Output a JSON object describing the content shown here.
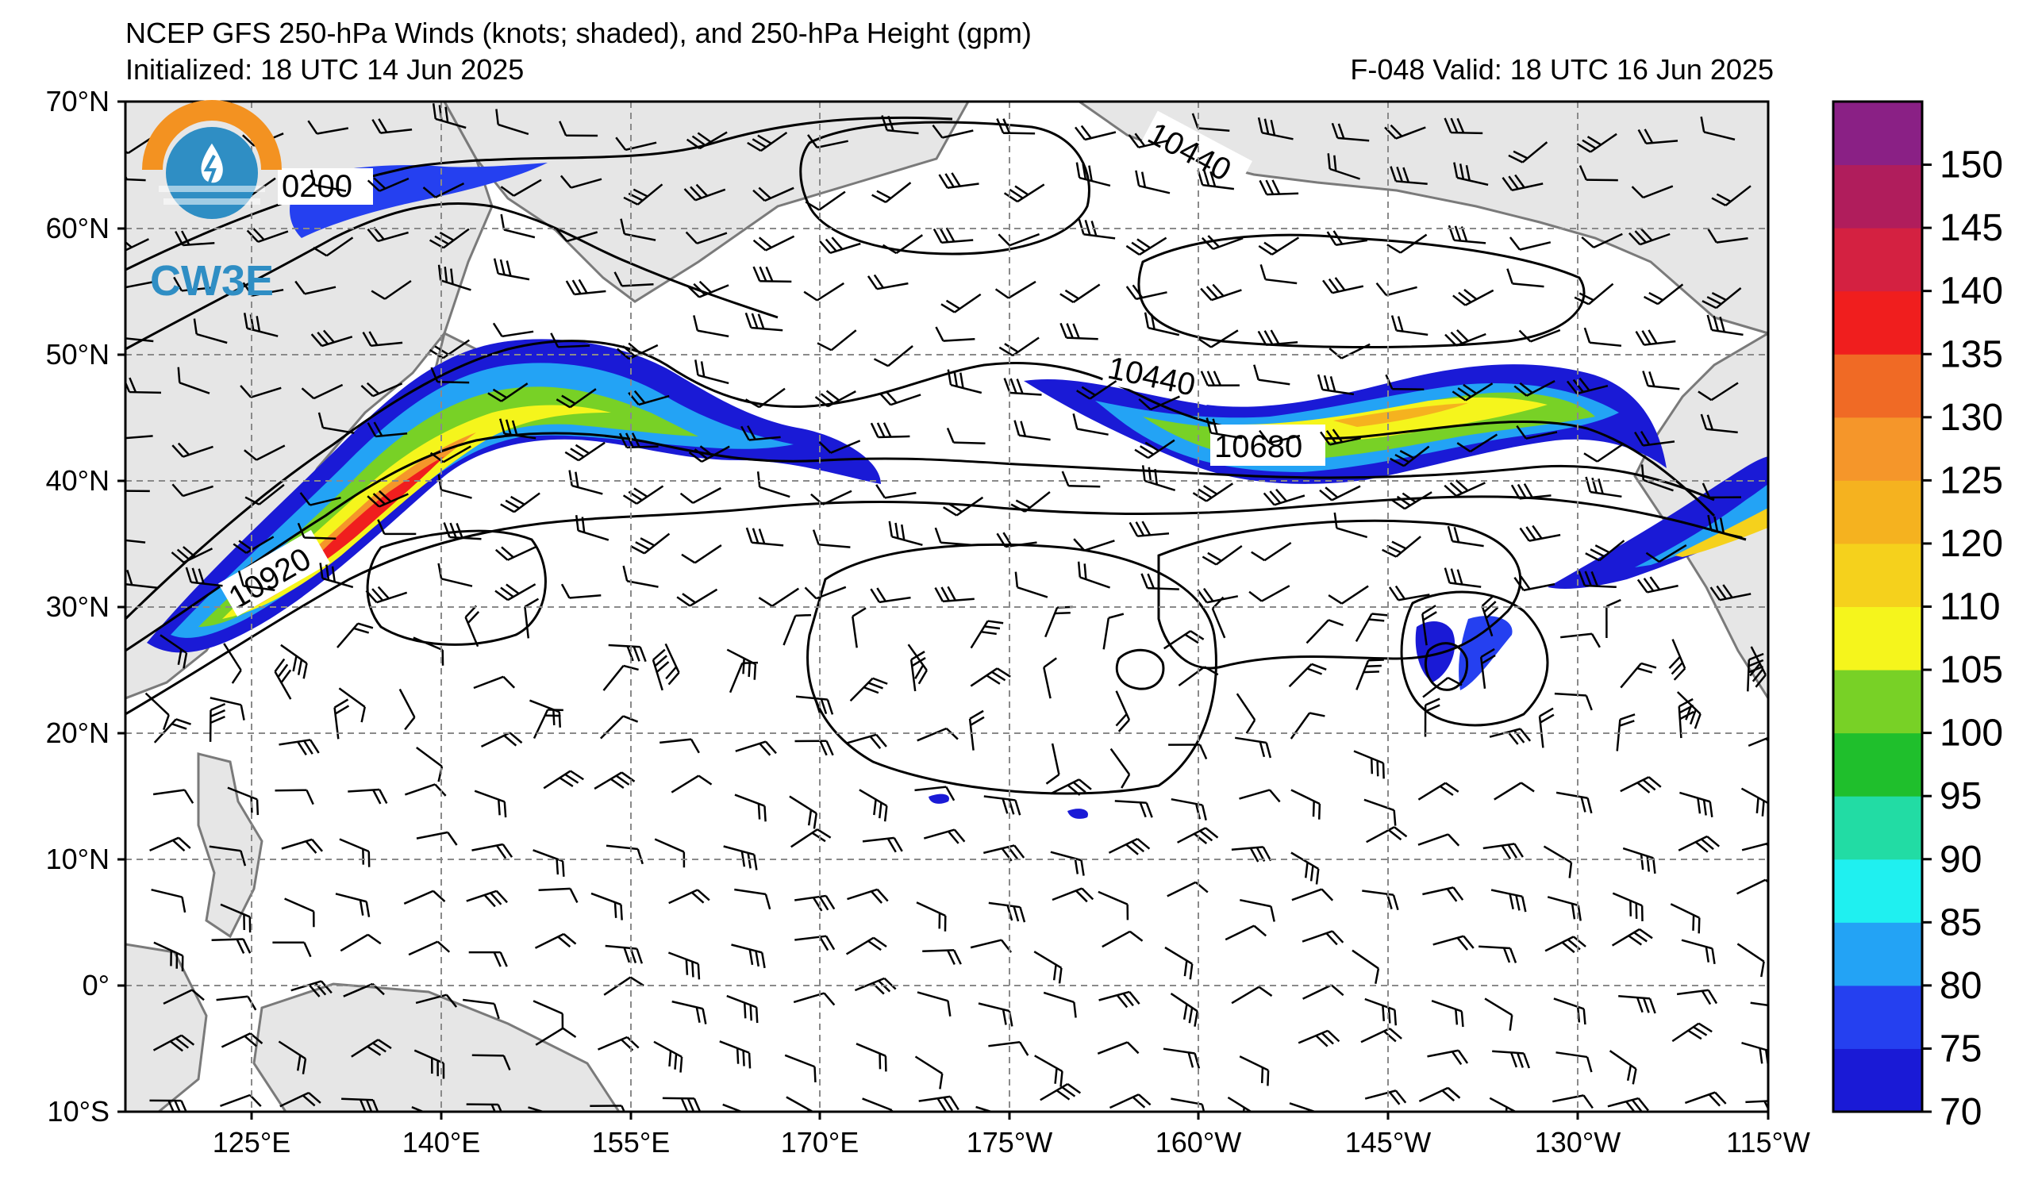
{
  "header": {
    "title": "NCEP GFS 250-hPa Winds (knots; shaded), and 250-hPa Height (gpm)",
    "initialized": "Initialized: 18 UTC 14 Jun 2025",
    "valid": "F-048  Valid: 18 UTC 16 Jun 2025"
  },
  "logo": {
    "text": "CW3E",
    "colors": {
      "ring": "#f39221",
      "body": "#2f8ec4"
    }
  },
  "axes": {
    "lat_labels": [
      "70°N",
      "60°N",
      "50°N",
      "40°N",
      "30°N",
      "20°N",
      "10°N",
      "0°",
      "10°S"
    ],
    "lon_labels": [
      "125°E",
      "140°E",
      "155°E",
      "170°E",
      "175°W",
      "160°W",
      "145°W",
      "130°W",
      "115°W"
    ]
  },
  "contours": {
    "labels": [
      {
        "id": "c1",
        "text": "0200"
      },
      {
        "id": "c2",
        "text": "10440"
      },
      {
        "id": "c3",
        "text": "10440"
      },
      {
        "id": "c4",
        "text": "10680"
      },
      {
        "id": "c5",
        "text": "10920"
      }
    ]
  },
  "colorbar": {
    "levels": [
      70,
      75,
      80,
      85,
      90,
      95,
      100,
      105,
      110,
      120,
      125,
      130,
      135,
      140,
      145,
      150
    ],
    "labels": [
      "70",
      "75",
      "80",
      "85",
      "90",
      "95",
      "100",
      "105",
      "110",
      "120",
      "125",
      "130",
      "135",
      "140",
      "145",
      "150"
    ],
    "colors": [
      "#1a1ad6",
      "#2540f0",
      "#23a3f5",
      "#1ff0f0",
      "#22dca4",
      "#1fbf2c",
      "#78d126",
      "#f5f51c",
      "#f5d11c",
      "#f5b21f",
      "#f5962a",
      "#f06a25",
      "#f01e1e",
      "#d42141",
      "#b01d5c",
      "#8a2085"
    ]
  }
}
